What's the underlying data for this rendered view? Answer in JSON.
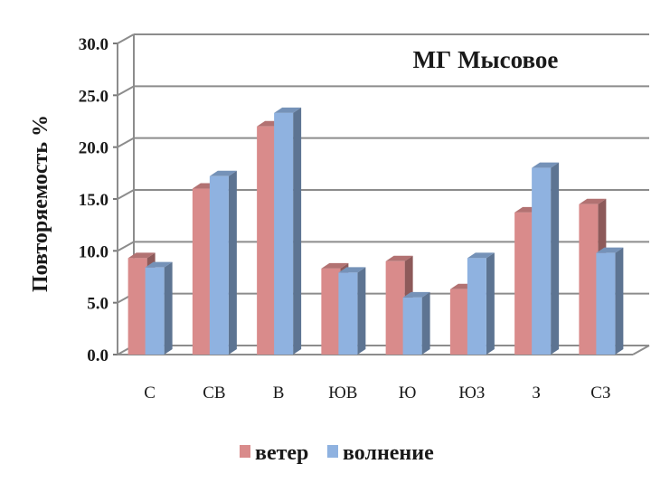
{
  "chart_data": {
    "type": "bar",
    "title": "МГ Мысовое",
    "ylabel": "Повторяемость %",
    "xlabel": "",
    "categories": [
      "С",
      "СВ",
      "В",
      "ЮВ",
      "Ю",
      "ЮЗ",
      "З",
      "СЗ"
    ],
    "series": [
      {
        "name": "ветер",
        "color": "#d98b8b",
        "values": [
          9.3,
          16.0,
          22.0,
          8.3,
          9.0,
          6.3,
          13.7,
          14.5
        ]
      },
      {
        "name": "волнение",
        "color": "#8fb2e0",
        "values": [
          8.4,
          17.2,
          23.3,
          7.9,
          5.5,
          9.3,
          18.0,
          9.8
        ]
      }
    ],
    "ylim": [
      0,
      30
    ],
    "yticks": [
      "0.0",
      "5.0",
      "10.0",
      "15.0",
      "20.0",
      "25.0",
      "30.0"
    ],
    "grid": true,
    "legend_position": "bottom",
    "style": "3d-columns"
  }
}
